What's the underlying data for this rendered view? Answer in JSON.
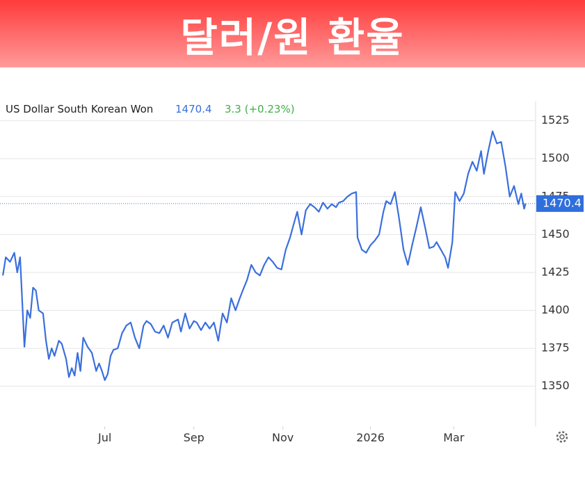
{
  "header": {
    "title": "달러/원 환율"
  },
  "chart_data": {
    "type": "line",
    "last_price": 1470.4,
    "change": "3.3 (+0.23%)",
    "x": [
      0,
      2,
      5,
      8,
      10,
      12,
      15,
      17,
      19,
      21,
      23,
      25,
      28,
      30,
      32,
      34,
      36,
      39,
      41,
      44,
      46,
      48,
      50,
      52,
      54,
      56,
      59,
      62,
      65,
      67,
      69,
      71,
      73,
      75,
      77,
      80,
      83,
      86,
      89,
      92,
      95,
      98,
      100,
      103,
      106,
      109,
      112,
      115,
      118,
      122,
      124,
      127,
      130,
      133,
      135,
      138,
      141,
      144,
      147,
      150,
      153,
      156,
      159,
      162,
      165,
      167,
      170,
      173,
      176,
      179,
      182,
      185,
      188,
      191,
      194,
      197,
      200,
      202,
      205,
      208,
      211,
      214,
      217,
      220,
      223,
      226,
      229,
      232,
      234,
      237,
      240,
      243,
      246,
      247,
      250,
      253,
      256,
      259,
      262,
      265,
      267,
      270,
      273,
      276,
      279,
      282,
      285,
      288,
      291,
      294,
      297,
      300,
      302,
      305,
      308,
      310,
      313,
      315,
      318,
      321,
      324,
      327,
      330,
      333,
      335,
      338,
      341,
      344,
      347,
      350,
      353,
      356,
      359,
      361,
      363,
      364
    ],
    "series": [
      {
        "name": "US Dollar South Korean Won",
        "color": "#3a6fdc",
        "values": [
          1423,
          1435,
          1432,
          1438,
          1425,
          1435,
          1376,
          1400,
          1395,
          1415,
          1413,
          1400,
          1398,
          1380,
          1368,
          1375,
          1370,
          1380,
          1378,
          1368,
          1356,
          1362,
          1357,
          1372,
          1360,
          1382,
          1376,
          1372,
          1360,
          1365,
          1360,
          1354,
          1358,
          1370,
          1374,
          1375,
          1385,
          1390,
          1392,
          1382,
          1375,
          1390,
          1393,
          1391,
          1386,
          1385,
          1390,
          1382,
          1392,
          1394,
          1386,
          1398,
          1388,
          1393,
          1392,
          1387,
          1392,
          1388,
          1392,
          1380,
          1398,
          1392,
          1408,
          1400,
          1408,
          1413,
          1420,
          1430,
          1425,
          1423,
          1430,
          1435,
          1432,
          1428,
          1427,
          1440,
          1448,
          1455,
          1465,
          1450,
          1466,
          1470,
          1468,
          1465,
          1471,
          1467,
          1470,
          1468,
          1471,
          1472,
          1475,
          1477,
          1478,
          1448,
          1440,
          1438,
          1443,
          1446,
          1450,
          1465,
          1472,
          1470,
          1478,
          1460,
          1440,
          1430,
          1443,
          1455,
          1468,
          1455,
          1441,
          1442,
          1445,
          1440,
          1435,
          1428,
          1445,
          1478,
          1472,
          1477,
          1490,
          1498,
          1492,
          1505,
          1490,
          1505,
          1518,
          1510,
          1511,
          1495,
          1475,
          1482,
          1470,
          1477,
          1467,
          1470.4
        ]
      }
    ],
    "xlim": [
      -2,
      371
    ],
    "xticks": [
      {
        "value": 71,
        "label": "Jul"
      },
      {
        "value": 133,
        "label": "Sep"
      },
      {
        "value": 195,
        "label": "Nov"
      },
      {
        "value": 256,
        "label": "2026"
      },
      {
        "value": 314,
        "label": "Mar"
      }
    ],
    "ylim": [
      1323.5,
      1537.9
    ],
    "yticks": [
      1350,
      1375,
      1400,
      1425,
      1450,
      1475,
      1500,
      1525
    ],
    "grid": true
  }
}
